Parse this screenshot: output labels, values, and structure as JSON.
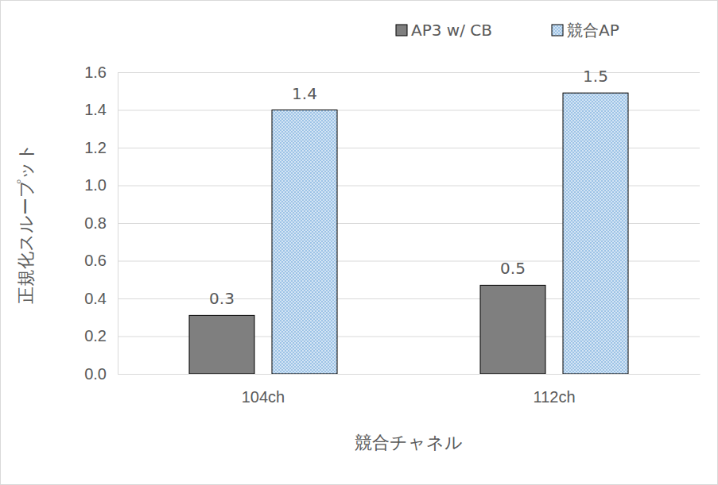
{
  "chart_data": {
    "type": "bar",
    "y_label": "正規化スループット",
    "x_label": "競合チャネル",
    "categories": [
      "104ch",
      "112ch"
    ],
    "series": [
      {
        "name": "AP3 w/ CB",
        "color": "#7f7f7f",
        "values": [
          0.31,
          0.47
        ],
        "value_labels": [
          "0.3",
          "0.5"
        ]
      },
      {
        "name": "競合AP",
        "color": "#9dc3e6",
        "values": [
          1.4,
          1.49
        ],
        "value_labels": [
          "1.4",
          "1.5"
        ]
      }
    ],
    "ylim": [
      0,
      1.6
    ],
    "yticks": [
      {
        "value": 0,
        "label": "0.0"
      },
      0.2,
      0.4,
      0.6,
      0.8,
      {
        "value": 1,
        "label": "1.0"
      },
      1.2,
      1.4,
      1.6
    ],
    "grid": true,
    "legend": "top-right",
    "data_labels": true
  }
}
